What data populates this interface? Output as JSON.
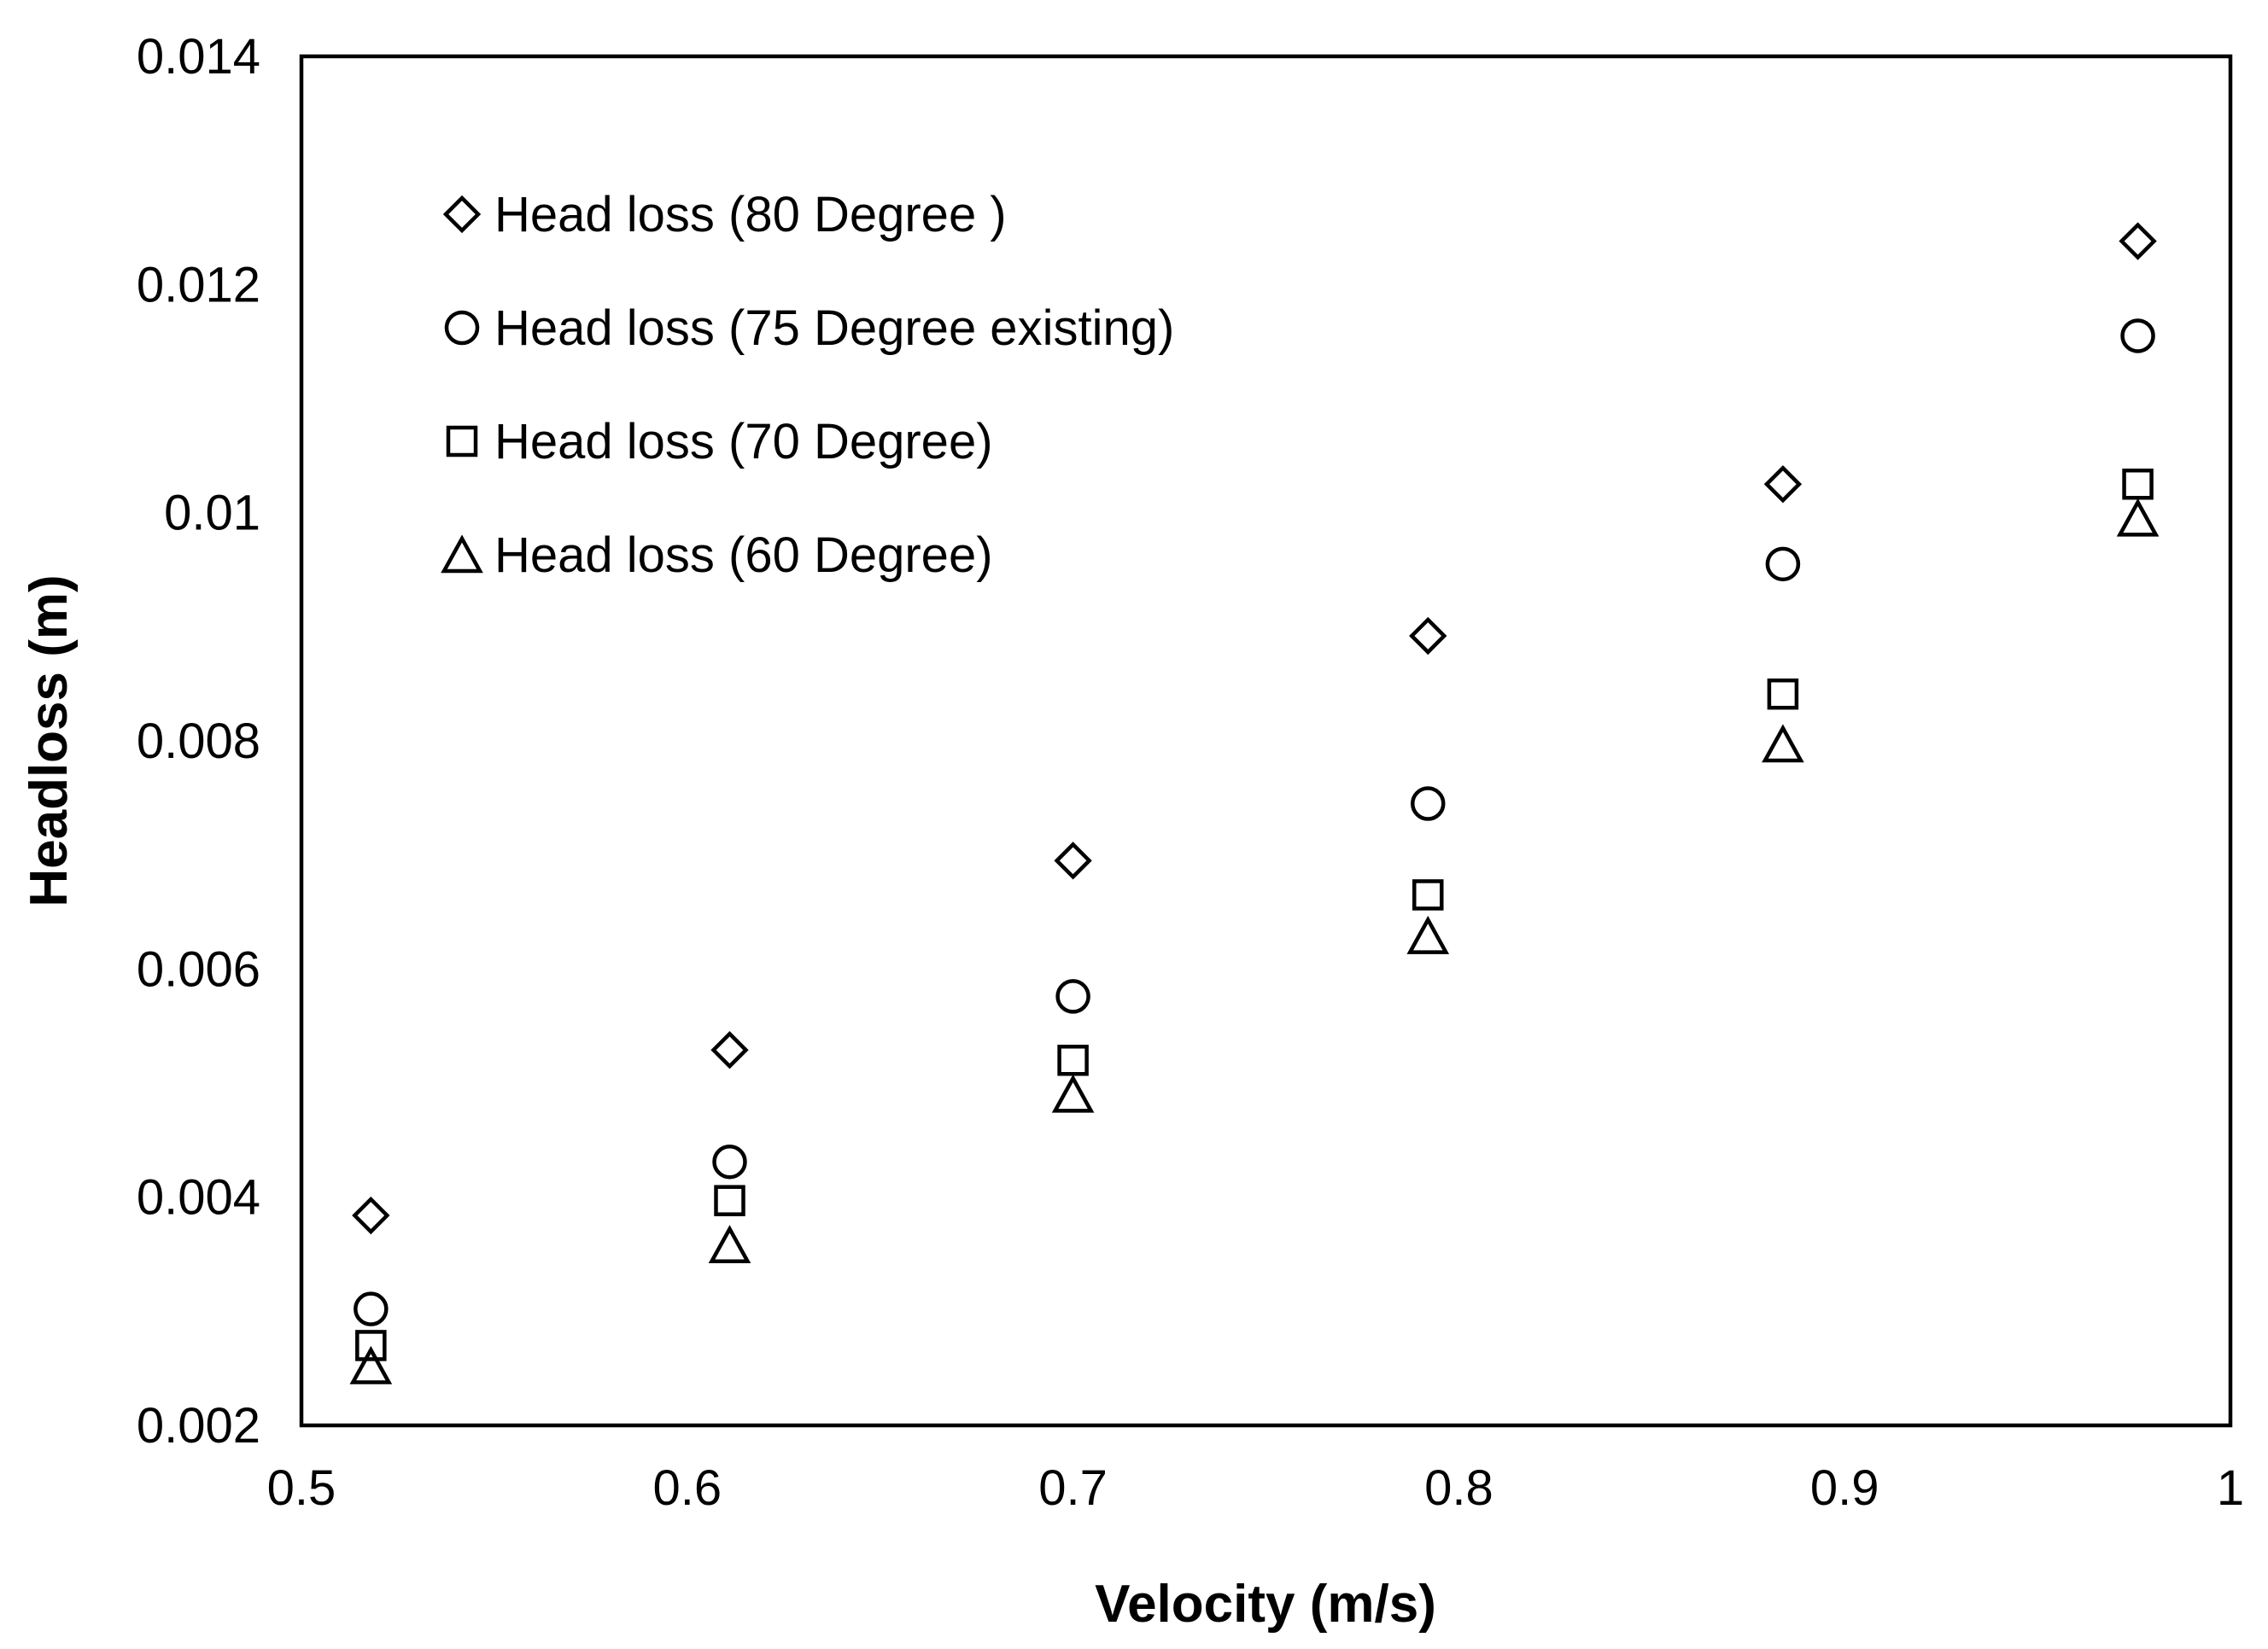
{
  "chart_data": {
    "type": "scatter",
    "title": "",
    "xlabel": "Velocity (m/s)",
    "ylabel": "Headloss (m)",
    "xlim": [
      0.5,
      1.0
    ],
    "ylim": [
      0.002,
      0.014
    ],
    "x_ticks": [
      0.5,
      0.6,
      0.7,
      0.8,
      0.9,
      1.0
    ],
    "x_tick_labels": [
      "0.5",
      "0.6",
      "0.7",
      "0.8",
      "0.9",
      "1"
    ],
    "y_ticks": [
      0.002,
      0.004,
      0.006,
      0.008,
      0.01,
      0.012,
      0.014
    ],
    "y_tick_labels": [
      "0.002",
      "0.004",
      "0.006",
      "0.008",
      "0.01",
      "0.012",
      "0.014"
    ],
    "grid": false,
    "legend_position": "top-left",
    "x": [
      0.518,
      0.611,
      0.7,
      0.792,
      0.884,
      0.976
    ],
    "series": [
      {
        "name": "Head loss (80 Degree )",
        "marker": "diamond",
        "values": [
          0.00384,
          0.00529,
          0.00695,
          0.00892,
          0.01025,
          0.01238
        ]
      },
      {
        "name": "Head loss (75 Degree existing)",
        "marker": "circle",
        "values": [
          0.00302,
          0.00431,
          0.00576,
          0.00745,
          0.00955,
          0.01155
        ]
      },
      {
        "name": "Head loss (70 Degree)",
        "marker": "square",
        "values": [
          0.0027,
          0.00397,
          0.0052,
          0.00665,
          0.00841,
          0.01025
        ]
      },
      {
        "name": "Head loss (60 Degree)",
        "marker": "triangle",
        "values": [
          0.00252,
          0.00358,
          0.0049,
          0.00629,
          0.00797,
          0.00995
        ]
      }
    ]
  }
}
